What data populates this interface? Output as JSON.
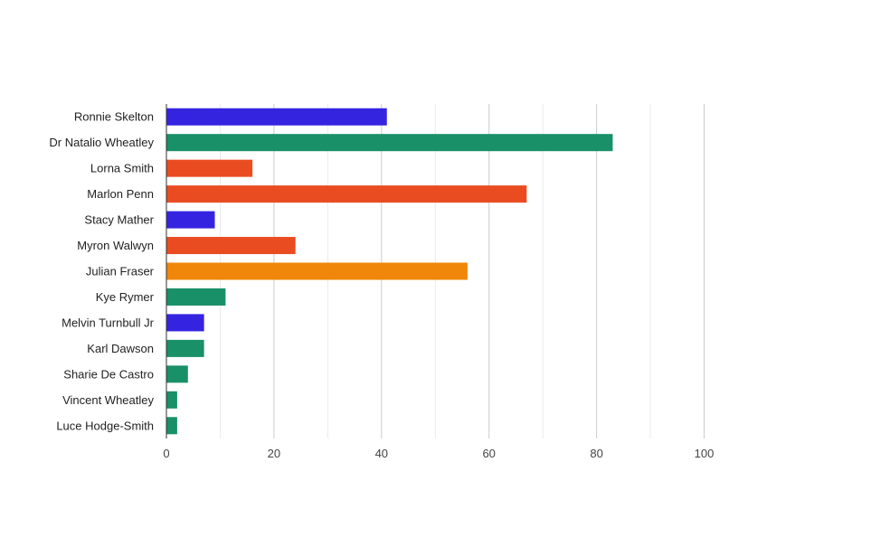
{
  "chart_data": {
    "type": "bar",
    "orientation": "horizontal",
    "title": "",
    "xlabel": "",
    "ylabel": "",
    "categories": [
      "Ronnie Skelton",
      "Dr Natalio Wheatley",
      "Lorna Smith",
      "Marlon Penn",
      "Stacy Mather",
      "Myron Walwyn",
      "Julian Fraser",
      "Kye Rymer",
      "Melvin Turnbull Jr",
      "Karl Dawson",
      "Sharie De Castro",
      "Vincent Wheatley",
      "Luce Hodge-Smith"
    ],
    "values": [
      41,
      83,
      16,
      67,
      9,
      24,
      56,
      11,
      7,
      7,
      4,
      2,
      2
    ],
    "bar_colors": [
      "#3424e0",
      "#1a9068",
      "#ea4c22",
      "#ea4c22",
      "#3424e0",
      "#ea4c22",
      "#f0870a",
      "#1a9068",
      "#3424e0",
      "#1a9068",
      "#1a9068",
      "#1a9068",
      "#1a9068"
    ],
    "xlim": [
      0,
      100
    ],
    "x_ticks": [
      0,
      20,
      40,
      60,
      80,
      100
    ],
    "grid": true,
    "legend": "none"
  }
}
